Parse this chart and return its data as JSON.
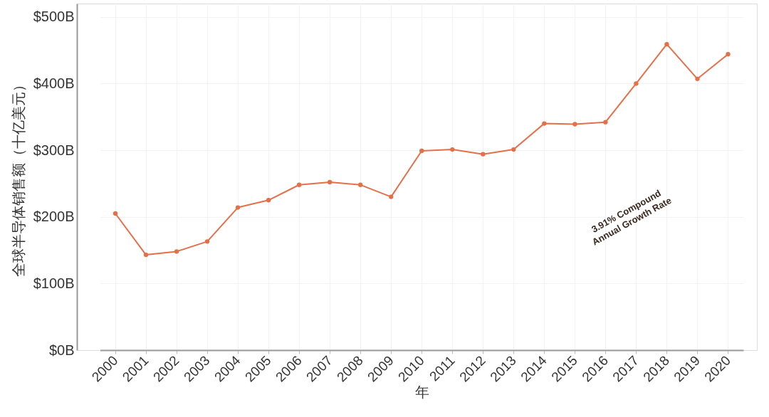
{
  "chart_data": {
    "type": "line",
    "xlabel": "年",
    "ylabel": "全球半导体销售额（十亿美元）",
    "categories": [
      "2000",
      "2001",
      "2002",
      "2003",
      "2004",
      "2005",
      "2006",
      "2007",
      "2008",
      "2009",
      "2010",
      "2011",
      "2012",
      "2013",
      "2014",
      "2015",
      "2016",
      "2017",
      "2018",
      "2019",
      "2020"
    ],
    "series": [
      {
        "color": "#e4704a",
        "values": [
          205,
          143,
          148,
          163,
          214,
          225,
          248,
          252,
          248,
          230,
          299,
          301,
          294,
          301,
          340,
          339,
          342,
          400,
          459,
          407,
          444
        ]
      }
    ],
    "ylim": [
      0,
      520
    ],
    "yticks": [
      {
        "value": 0,
        "label": "$0B"
      },
      {
        "value": 100,
        "label": "$100B"
      },
      {
        "value": 200,
        "label": "$200B"
      },
      {
        "value": 300,
        "label": "$300B"
      },
      {
        "value": 400,
        "label": "$400B"
      },
      {
        "value": 500,
        "label": "$500B"
      }
    ],
    "grid": true,
    "marker": "circle",
    "line_style": "solid",
    "annotations": [
      "3.91% Compound Annual Growth Rate"
    ]
  }
}
